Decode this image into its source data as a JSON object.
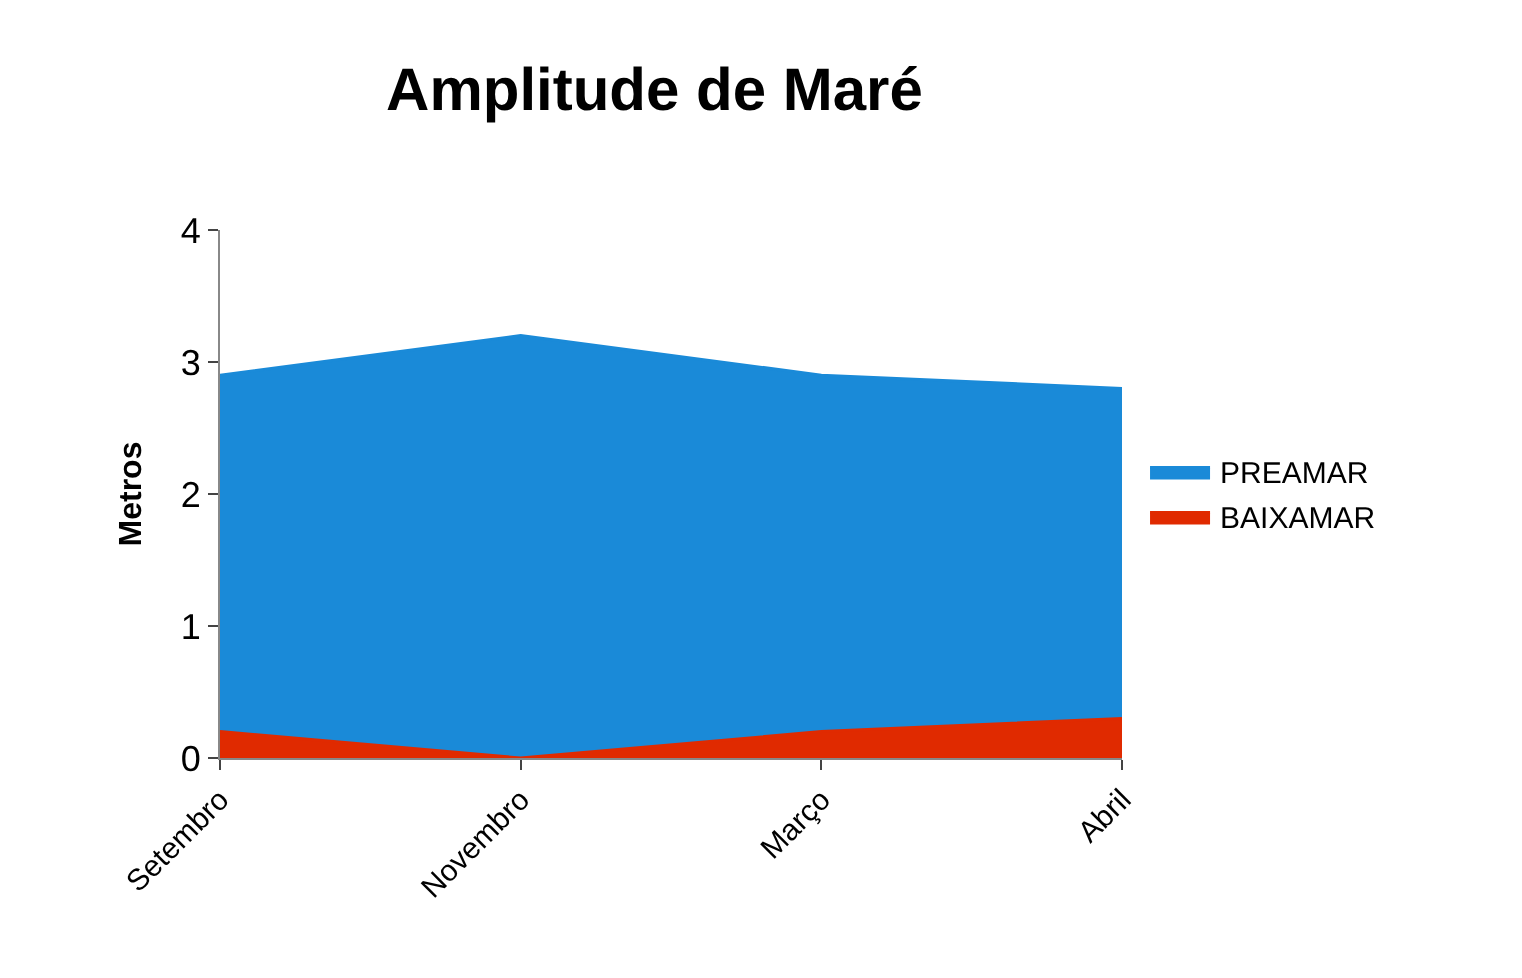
{
  "chart_data": {
    "type": "area",
    "title": "Amplitude de Maré",
    "ylabel": "Metros",
    "categories": [
      "Setembro",
      "Novembro",
      "Março",
      "Abril"
    ],
    "series": [
      {
        "name": "PREAMAR",
        "color": "#1a8ad8",
        "values": [
          2.9,
          3.2,
          2.9,
          2.8
        ]
      },
      {
        "name": "BAIXAMAR",
        "color": "#e02a00",
        "values": [
          0.2,
          0.0,
          0.2,
          0.3
        ]
      }
    ],
    "ylim": [
      0,
      4
    ],
    "yticks": [
      0,
      1,
      2,
      3,
      4
    ],
    "legend": "right"
  }
}
